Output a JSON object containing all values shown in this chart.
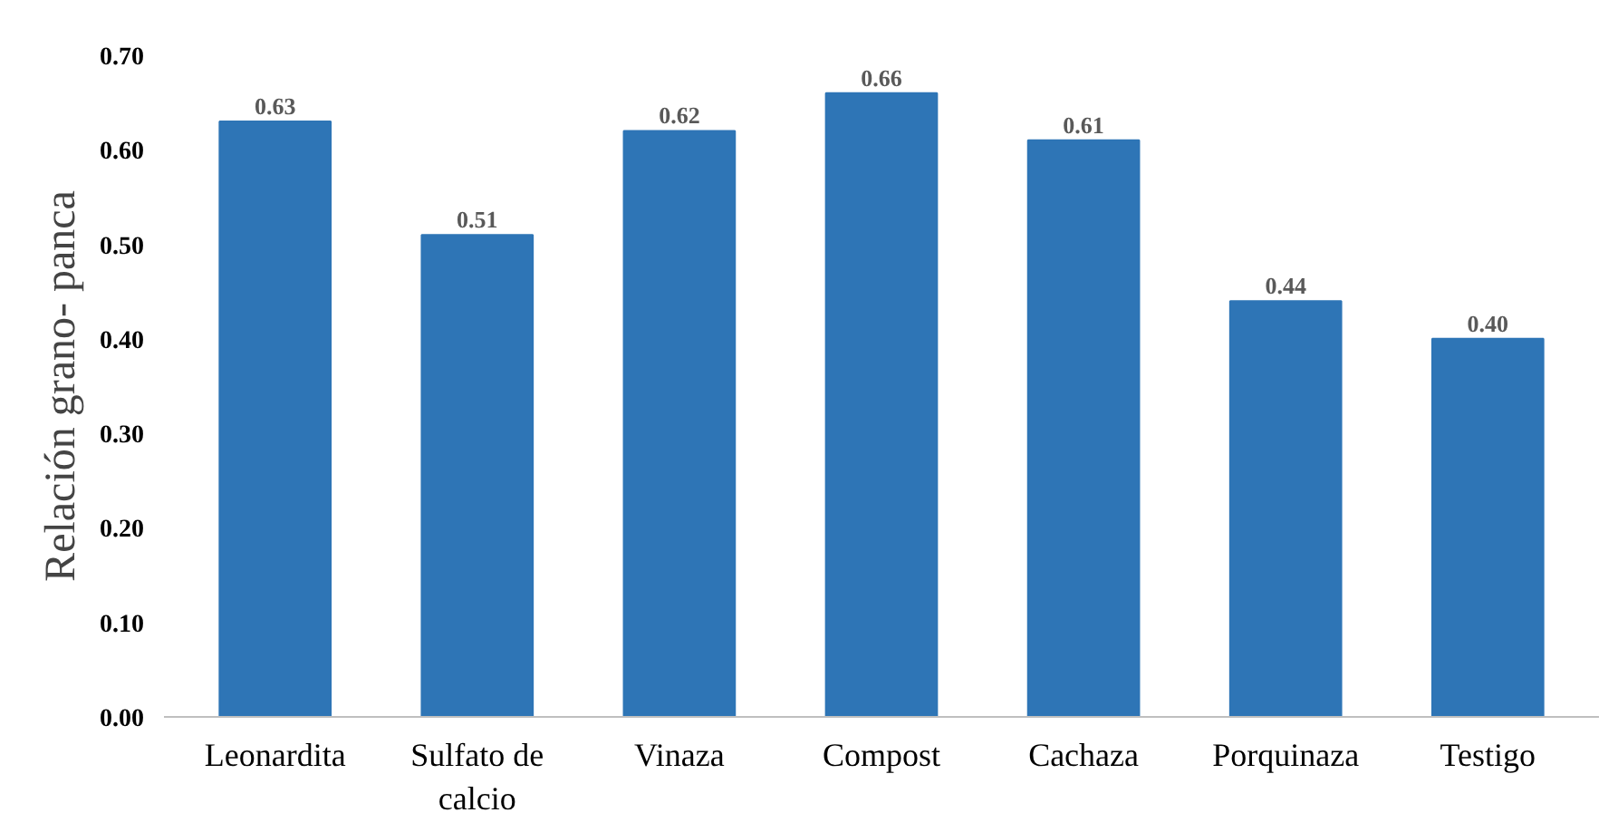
{
  "chart_data": {
    "type": "bar",
    "ylabel": "Relación grano- panca",
    "categories": [
      "Leonardita",
      "Sulfato de calcio",
      "Vinaza",
      "Compost",
      "Cachaza",
      "Porquinaza",
      "Testigo"
    ],
    "values": [
      0.63,
      0.51,
      0.62,
      0.66,
      0.61,
      0.44,
      0.4
    ],
    "color": "#2e75b6",
    "value_labels": [
      "0.63",
      "0.51",
      "0.62",
      "0.66",
      "0.61",
      "0.44",
      "0.40"
    ],
    "ylim": [
      0,
      0.7
    ],
    "yticks": [
      {
        "value": 0,
        "label": "0.00"
      },
      {
        "value": 0.1,
        "label": "0.10"
      },
      {
        "value": 0.2,
        "label": "0.20"
      },
      {
        "value": 0.3,
        "label": "0.30"
      },
      {
        "value": 0.4,
        "label": "0.40"
      },
      {
        "value": 0.5,
        "label": "0.50"
      },
      {
        "value": 0.6,
        "label": "0.60"
      },
      {
        "value": 0.7,
        "label": "0.70"
      }
    ],
    "grid": false
  }
}
